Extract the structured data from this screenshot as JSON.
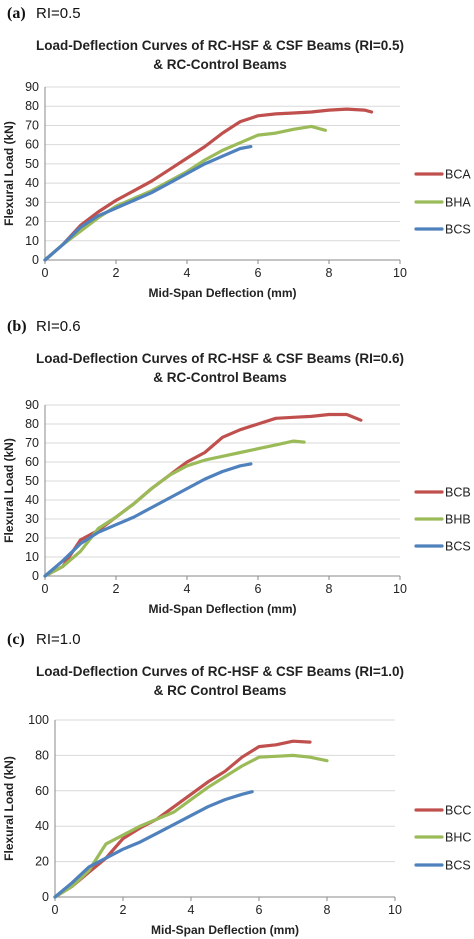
{
  "chart_data": [
    {
      "type": "line",
      "panel_label": "(a)",
      "panel_ri": "RI=0.5",
      "title": [
        "Load-Deflection Curves of RC-HSF & CSF Beams (RI=0.5)",
        "& RC-Control Beams"
      ],
      "xlabel": "Mid-Span Deflection (mm)",
      "ylabel": "Flexural Load (kN)",
      "xlim": [
        0,
        10
      ],
      "ylim": [
        0,
        90
      ],
      "xticks": [
        0,
        2,
        4,
        6,
        8,
        10
      ],
      "yticks": [
        0,
        10,
        20,
        30,
        40,
        50,
        60,
        70,
        80,
        90
      ],
      "grid": "horizontal",
      "legend": "right",
      "series": [
        {
          "name": "BCA",
          "color": "#c0504d",
          "x": [
            0,
            0.5,
            1,
            1.5,
            2,
            2.5,
            3,
            3.5,
            4,
            4.5,
            5,
            5.5,
            6,
            6.5,
            7,
            7.5,
            8,
            8.5,
            9,
            9.2
          ],
          "y": [
            0,
            8,
            18,
            25,
            31,
            36,
            41,
            47,
            53,
            59,
            66,
            72,
            75,
            76,
            76.5,
            77,
            78,
            78.5,
            78,
            77
          ]
        },
        {
          "name": "BHA",
          "color": "#9bbb59",
          "x": [
            0,
            0.5,
            1,
            1.5,
            2,
            2.5,
            3,
            3.5,
            4,
            4.5,
            5,
            5.5,
            6,
            6.5,
            7,
            7.5,
            7.9
          ],
          "y": [
            0,
            8,
            15,
            22,
            28,
            32,
            36,
            41,
            46,
            52,
            57,
            61,
            65,
            66,
            68,
            69.5,
            67.5
          ]
        },
        {
          "name": "BCS",
          "color": "#4f81bd",
          "x": [
            0,
            0.5,
            1,
            1.5,
            2,
            2.5,
            3,
            3.5,
            4,
            4.5,
            5,
            5.5,
            5.8
          ],
          "y": [
            0,
            8,
            17,
            23,
            27,
            31,
            35,
            40,
            45,
            50,
            54,
            58,
            59
          ]
        }
      ]
    },
    {
      "type": "line",
      "panel_label": "(b)",
      "panel_ri": "RI=0.6",
      "title": [
        "Load-Deflection Curves of RC-HSF & CSF Beams (RI=0.6)",
        "& RC-Control Beams"
      ],
      "xlabel": "Mid-Span Deflection (mm)",
      "ylabel": "Flexural Load (kN)",
      "xlim": [
        0,
        10
      ],
      "ylim": [
        0,
        90
      ],
      "xticks": [
        0,
        2,
        4,
        6,
        8,
        10
      ],
      "yticks": [
        0,
        10,
        20,
        30,
        40,
        50,
        60,
        70,
        80,
        90
      ],
      "grid": "horizontal",
      "legend": "right",
      "series": [
        {
          "name": "BCB",
          "color": "#c0504d",
          "x": [
            0,
            0.5,
            1,
            1.5,
            2,
            2.5,
            3,
            3.5,
            4,
            4.5,
            5,
            5.5,
            6,
            6.5,
            7,
            7.5,
            8,
            8.5,
            8.9
          ],
          "y": [
            0,
            5,
            19,
            24,
            31,
            38,
            46,
            53,
            60,
            65,
            73,
            77,
            80,
            83,
            83.5,
            84,
            85,
            85,
            82
          ]
        },
        {
          "name": "BHB",
          "color": "#9bbb59",
          "x": [
            0,
            0.5,
            1,
            1.5,
            2,
            2.5,
            3,
            3.5,
            4,
            4.5,
            5,
            5.5,
            6,
            6.5,
            7,
            7.3
          ],
          "y": [
            0,
            5,
            13,
            25,
            31,
            38,
            46,
            53,
            58,
            61,
            63,
            65,
            67,
            69,
            71,
            70.5
          ]
        },
        {
          "name": "BCS",
          "color": "#4f81bd",
          "x": [
            0,
            0.5,
            1,
            1.5,
            2,
            2.5,
            3,
            3.5,
            4,
            4.5,
            5,
            5.5,
            5.8
          ],
          "y": [
            0,
            8,
            17,
            23,
            27,
            31,
            36,
            41,
            46,
            51,
            55,
            58,
            59
          ]
        }
      ]
    },
    {
      "type": "line",
      "panel_label": "(c)",
      "panel_ri": "RI=1.0",
      "title": [
        "Load-Deflection Curves of RC-HSF & CSF Beams (RI=1.0)",
        "& RC Control Beams"
      ],
      "xlabel": "Mid-Span Deflection (mm)",
      "ylabel": "Flexural Load (kN)",
      "xlim": [
        0,
        10
      ],
      "ylim": [
        0,
        100
      ],
      "xticks": [
        0,
        2,
        4,
        6,
        8,
        10
      ],
      "yticks": [
        0,
        20,
        40,
        60,
        80,
        100
      ],
      "grid": "horizontal",
      "legend": "right",
      "series": [
        {
          "name": "BCC",
          "color": "#c0504d",
          "x": [
            0,
            0.5,
            1,
            1.5,
            2,
            2.5,
            3,
            3.5,
            4,
            4.5,
            5,
            5.5,
            6,
            6.5,
            7,
            7.5
          ],
          "y": [
            0,
            6,
            14,
            22,
            33,
            39,
            44,
            51,
            58,
            65,
            71,
            79,
            85,
            86,
            88,
            87.5
          ]
        },
        {
          "name": "BHC",
          "color": "#9bbb59",
          "x": [
            0,
            0.5,
            1,
            1.5,
            2,
            2.5,
            3,
            3.5,
            4,
            4.5,
            5,
            5.5,
            6,
            6.5,
            7,
            7.5,
            8
          ],
          "y": [
            0,
            6,
            15,
            30,
            35,
            40,
            44,
            48,
            55,
            62,
            68,
            74,
            79,
            79.5,
            80,
            79,
            77
          ]
        },
        {
          "name": "BCS",
          "color": "#4f81bd",
          "x": [
            0,
            0.5,
            1,
            1.5,
            2,
            2.5,
            3,
            3.5,
            4,
            4.5,
            5,
            5.5,
            5.8
          ],
          "y": [
            0,
            8,
            17,
            22,
            27,
            31,
            36,
            41,
            46,
            51,
            55,
            58,
            59.5
          ]
        }
      ]
    }
  ]
}
